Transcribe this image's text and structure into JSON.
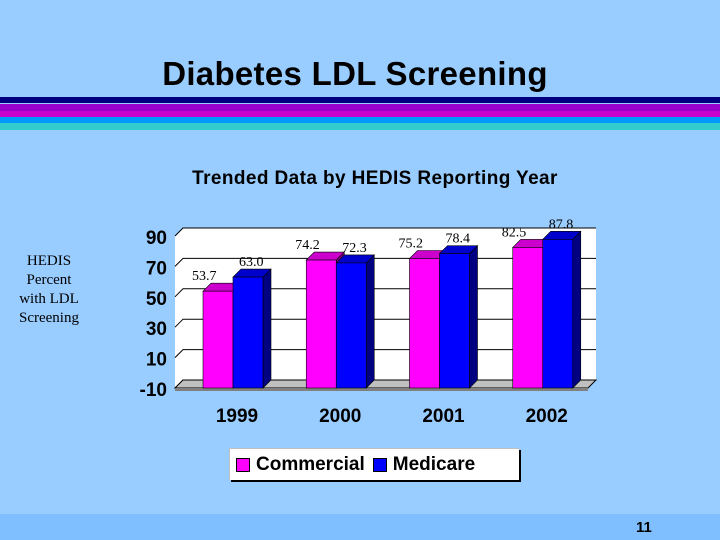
{
  "slide": {
    "title": "Diabetes LDL Screening",
    "page_number": "11",
    "y_side_label": [
      "HEDIS",
      "Percent",
      "with LDL",
      "Screening"
    ]
  },
  "colors": {
    "background": "#99ccff",
    "stripes": [
      "#000080",
      "#9900cc",
      "#cc00cc",
      "#0099ff",
      "#33cccc"
    ],
    "commercial": "#ff00ff",
    "medicare": "#0000ff"
  },
  "chart_data": {
    "type": "bar",
    "title": "Trended Data by HEDIS Reporting Year",
    "xlabel": "",
    "ylabel": "HEDIS Percent with LDL Screening",
    "categories": [
      "1999",
      "2000",
      "2001",
      "2002"
    ],
    "series": [
      {
        "name": "Commercial",
        "values": [
          53.7,
          74.2,
          75.2,
          82.5
        ],
        "labels": [
          "53.7",
          "74.2",
          "75.2",
          "82.5"
        ]
      },
      {
        "name": "Medicare",
        "values": [
          63.0,
          72.3,
          78.4,
          87.8
        ],
        "labels": [
          "63.0",
          "72.3",
          "78.4",
          "87.8"
        ]
      }
    ],
    "ylim": [
      -10,
      90
    ],
    "yticks": [
      -10,
      10,
      30,
      50,
      70,
      90
    ],
    "ytick_labels": [
      "-10",
      "10",
      "30",
      "50",
      "70",
      "90"
    ],
    "legend_position": "bottom",
    "style": "3d"
  }
}
